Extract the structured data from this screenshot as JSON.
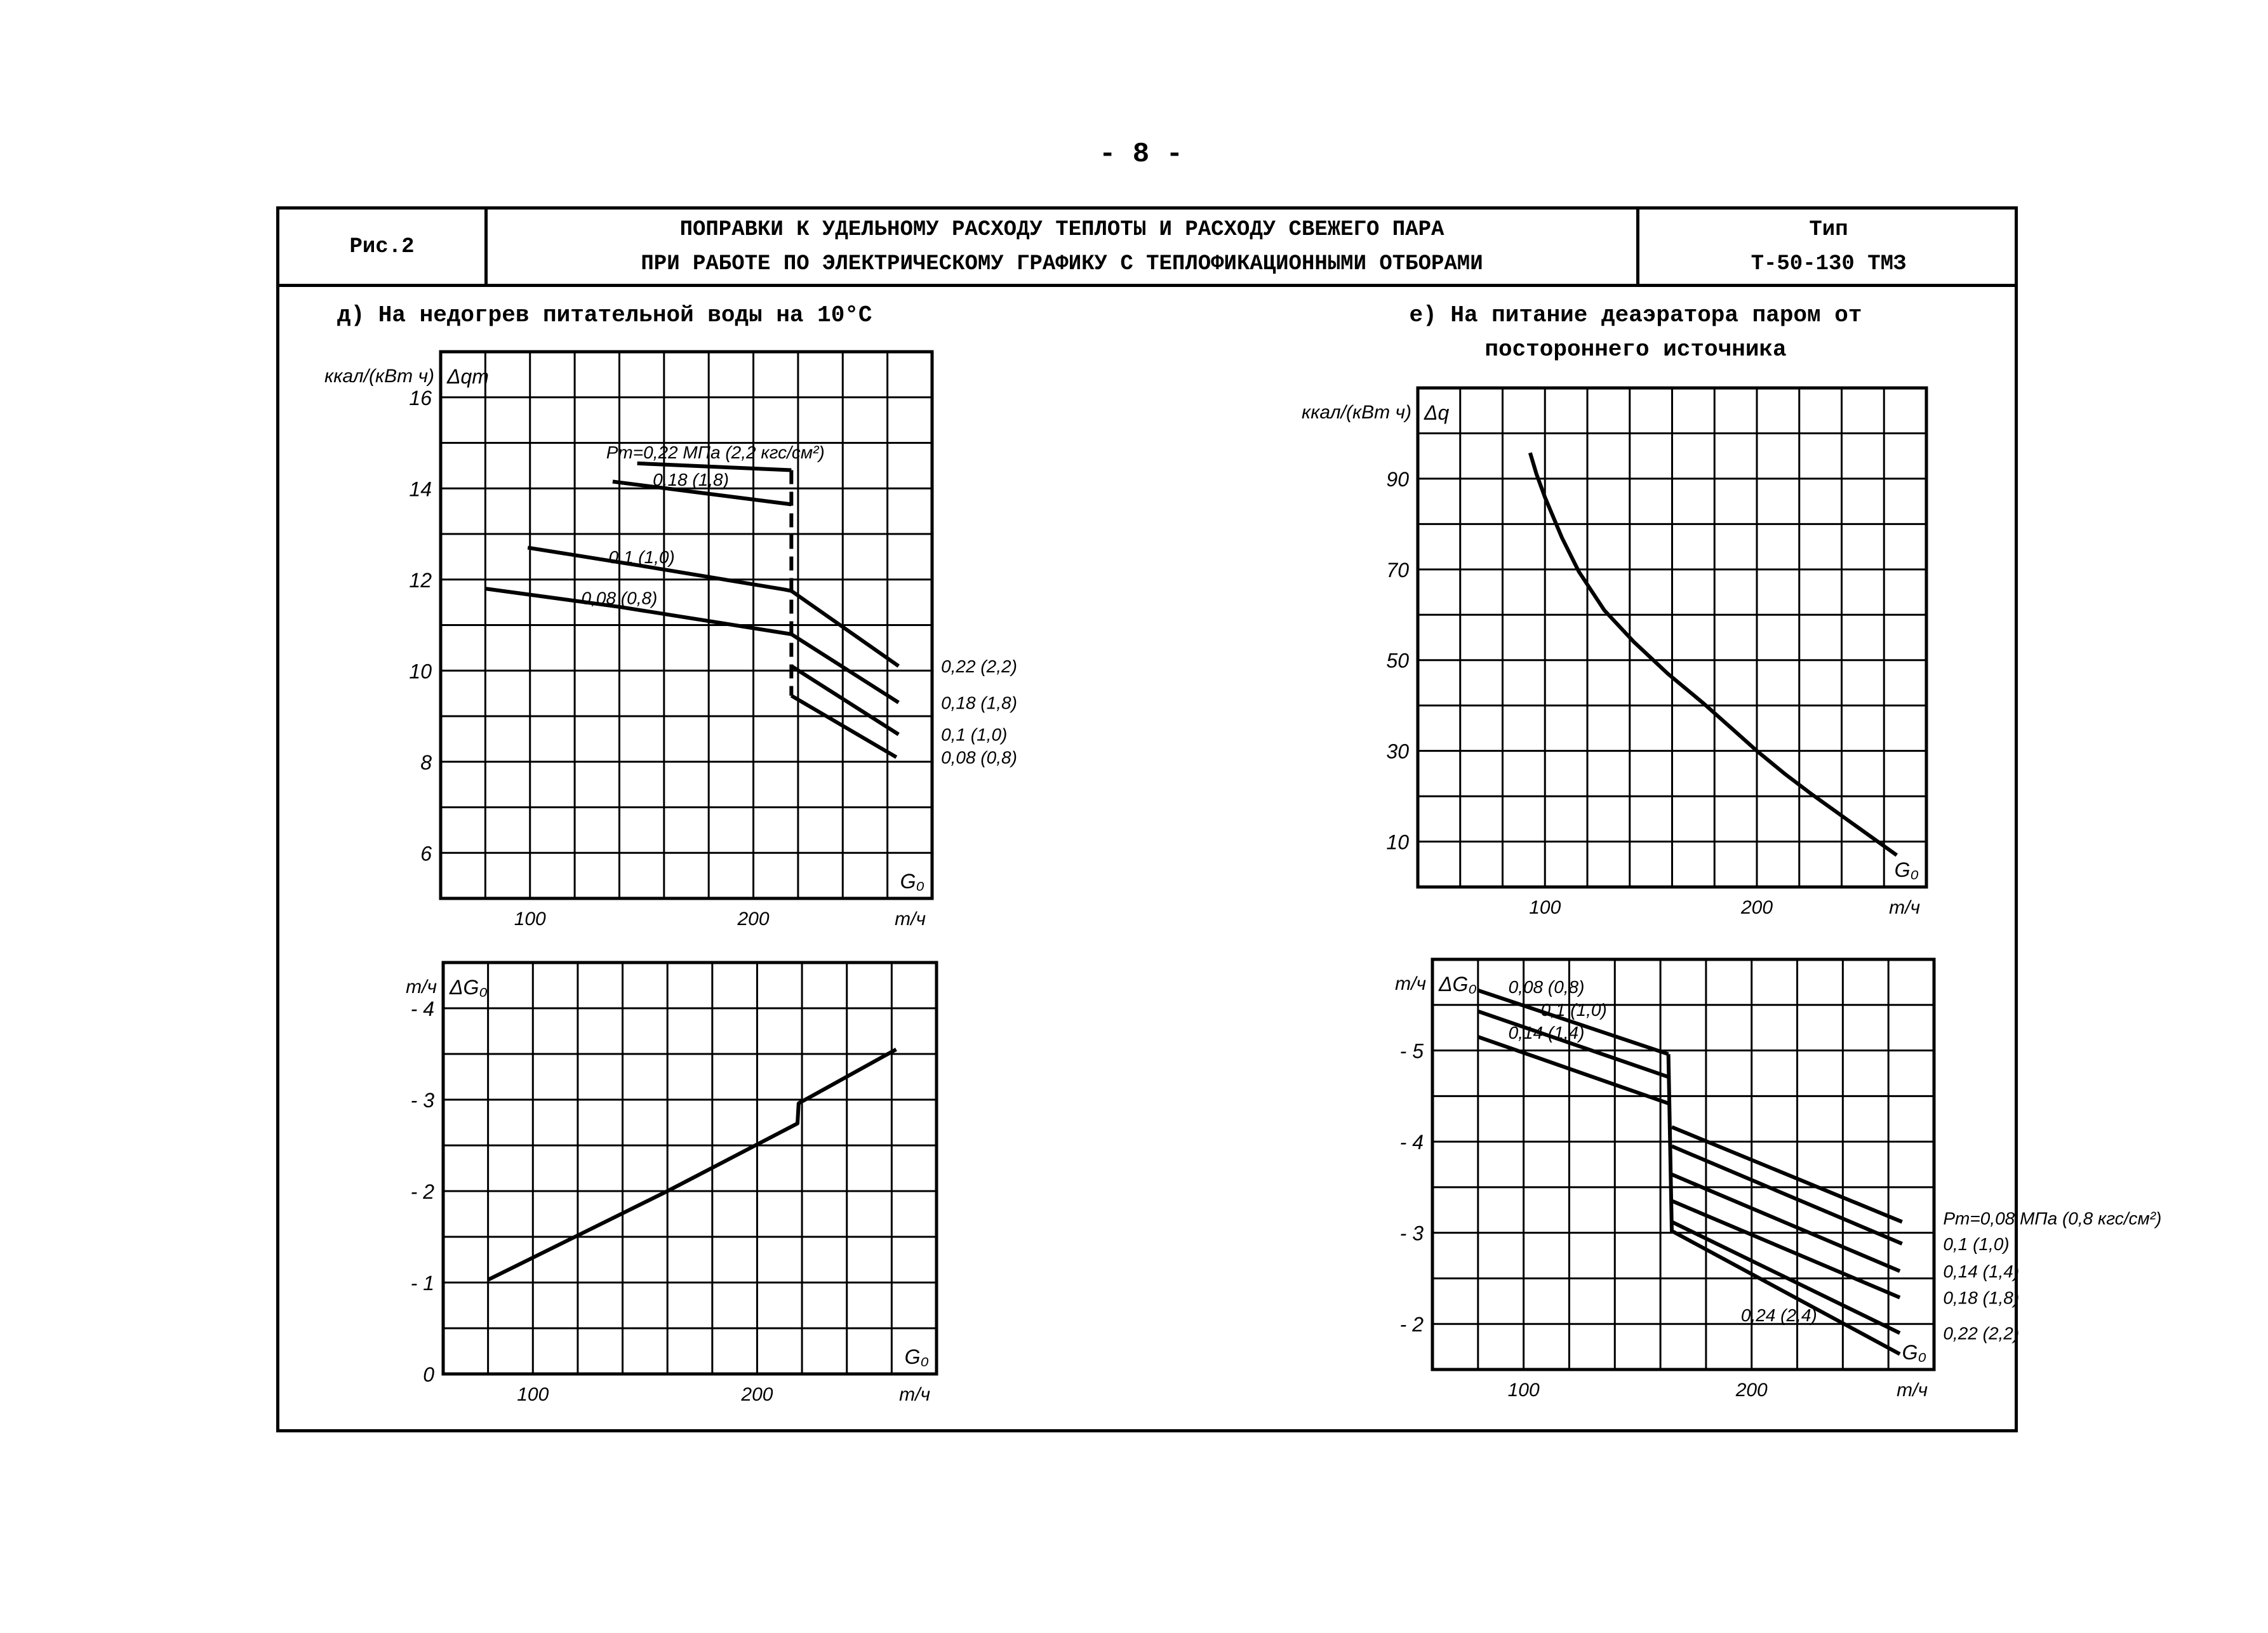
{
  "page_number": "- 8 -",
  "header": {
    "fig": "Рис.2",
    "title_line1": "ПОПРАВКИ К УДЕЛЬНОМУ РАСХОДУ ТЕПЛОТЫ И РАСХОДУ СВЕЖЕГО ПАРА",
    "title_line2": "ПРИ РАБОТЕ ПО ЭЛЕКТРИЧЕСКОМУ ГРАФИКУ С ТЕПЛОФИКАЦИОННЫМИ ОТБОРАМИ",
    "type_label": "Тип",
    "type_value": "Т-50-130 ТМЗ"
  },
  "chart_data": [
    {
      "type": "line",
      "title": [
        "д) На недогрев питательной воды на 10°С"
      ],
      "ylabel": "ккал/(кВт ч)",
      "ysymbol": "Δqт",
      "xsymbol": "G₀",
      "xunit": "т/ч",
      "xlim": [
        60,
        280
      ],
      "ylim": [
        5,
        17
      ],
      "grid": true,
      "xgrid_step": 20,
      "ygrid_step": 1,
      "xticks": [
        {
          "value": 100,
          "label": "100"
        },
        {
          "value": 200,
          "label": "200"
        }
      ],
      "yticks": [
        {
          "value": 6,
          "label": "6"
        },
        {
          "value": 8,
          "label": "8"
        },
        {
          "value": 10,
          "label": "10"
        },
        {
          "value": 12,
          "label": "12"
        },
        {
          "value": 14,
          "label": "14"
        },
        {
          "value": 16,
          "label": "16"
        }
      ],
      "series": [
        {
          "name": "Pт=0,22 МПа (2,2 кгс/см²)",
          "labels": [
            "Pт=0,22 МПа (2,2 кгс/см²)",
            "0,22 (2,2)"
          ],
          "segments": [
            [
              [
                148,
                14.55
              ],
              [
                217,
                14.4
              ]
            ],
            [
              [
                217,
                11.75
              ],
              [
                265,
                10.1
              ]
            ]
          ]
        },
        {
          "name": "0,18 (1,8)",
          "labels": [
            "0,18 (1,8)",
            "0,18 (1,8)"
          ],
          "segments": [
            [
              [
                137,
                14.15
              ],
              [
                217,
                13.65
              ]
            ],
            [
              [
                217,
                10.8
              ],
              [
                265,
                9.3
              ]
            ]
          ]
        },
        {
          "name": "0,1 (1,0)",
          "labels": [
            "0,1 (1,0)",
            "0,1 (1,0)"
          ],
          "segments": [
            [
              [
                99,
                12.7
              ],
              [
                150,
                12.3
              ],
              [
                214,
                11.78
              ],
              [
                217,
                11.75
              ]
            ],
            [
              [
                217,
                10.1
              ],
              [
                265,
                8.6
              ]
            ]
          ]
        },
        {
          "name": "0,08 (0,8)",
          "labels": [
            "0,08 (0,8)",
            "0,08 (0,8)"
          ],
          "segments": [
            [
              [
                80,
                11.8
              ],
              [
                140,
                11.4
              ],
              [
                217,
                10.8
              ]
            ],
            [
              [
                217,
                9.45
              ],
              [
                264,
                8.1
              ]
            ]
          ]
        }
      ],
      "connectors": [
        {
          "style": "dashed",
          "points": [
            [
              217,
              14.4
            ],
            [
              217,
              9.45
            ]
          ]
        }
      ]
    },
    {
      "type": "line",
      "title": [
        "е) На питание деаэратора паром от",
        "постороннего источника"
      ],
      "ylabel": "ккал/(кВт ч)",
      "ysymbol": "Δq",
      "xsymbol": "G₀",
      "xunit": "т/ч",
      "xlim": [
        40,
        280
      ],
      "ylim": [
        0,
        110
      ],
      "grid": true,
      "xgrid_step": 20,
      "ygrid_step": 10,
      "xticks": [
        {
          "value": 100,
          "label": "100"
        },
        {
          "value": 200,
          "label": "200"
        }
      ],
      "yticks": [
        {
          "value": 10,
          "label": "10"
        },
        {
          "value": 30,
          "label": "30"
        },
        {
          "value": 50,
          "label": "50"
        },
        {
          "value": 70,
          "label": "70"
        },
        {
          "value": 90,
          "label": "90"
        }
      ],
      "series": [
        {
          "labels": [],
          "segments": [
            [
              [
                93,
                95.7
              ],
              [
                96,
                91
              ],
              [
                100,
                85.9
              ],
              [
                108,
                77
              ],
              [
                116,
                69.5
              ],
              [
                128,
                61
              ],
              [
                142,
                54
              ],
              [
                158,
                47
              ],
              [
                175,
                40.4
              ],
              [
                188,
                35
              ],
              [
                200,
                30
              ],
              [
                213,
                25
              ],
              [
                226,
                20.4
              ],
              [
                246,
                13.7
              ],
              [
                266,
                7
              ]
            ]
          ]
        }
      ],
      "connectors": []
    },
    {
      "type": "line",
      "title": [],
      "ylabel": "т/ч",
      "ysymbol": "ΔG₀",
      "xsymbol": "G₀",
      "xunit": "т/ч",
      "xlim": [
        60,
        280
      ],
      "ylim": [
        0,
        -4.5
      ],
      "grid": true,
      "xgrid_step": 20,
      "ygrid_step": -0.5,
      "xticks": [
        {
          "value": 100,
          "label": "100"
        },
        {
          "value": 200,
          "label": "200"
        }
      ],
      "yticks": [
        {
          "value": 0,
          "label": "0"
        },
        {
          "value": -1,
          "label": "- 1"
        },
        {
          "value": -2,
          "label": "- 2"
        },
        {
          "value": -3,
          "label": "- 3"
        },
        {
          "value": -4,
          "label": "- 4"
        }
      ],
      "series": [
        {
          "labels": [],
          "segments": [
            [
              [
                80,
                -1.03
              ],
              [
                160,
                -2.0
              ],
              [
                218,
                -2.74
              ],
              [
                218.5,
                -2.96
              ],
              [
                262,
                -3.55
              ]
            ]
          ]
        }
      ],
      "connectors": []
    },
    {
      "type": "line",
      "title": [],
      "ylabel": "т/ч",
      "ysymbol": "ΔG₀",
      "xsymbol": "G₀",
      "xunit": "т/ч",
      "xlim": [
        60,
        280
      ],
      "ylim": [
        -1.5,
        -6
      ],
      "grid": true,
      "xgrid_step": 20,
      "ygrid_step": -0.5,
      "xticks": [
        {
          "value": 100,
          "label": "100"
        },
        {
          "value": 200,
          "label": "200"
        }
      ],
      "yticks": [
        {
          "value": -2,
          "label": "- 2"
        },
        {
          "value": -3,
          "label": "- 3"
        },
        {
          "value": -4,
          "label": "- 4"
        },
        {
          "value": -5,
          "label": "- 5"
        }
      ],
      "series": [
        {
          "name": "Pт=0,08 МПа (0,8 кгс/см²)",
          "labels": [
            "0,08 (0,8)",
            "Pт=0,08 МПа (0,8 кгс/см²)"
          ],
          "segments": [
            [
              [
                80,
                -5.66
              ],
              [
                163.5,
                -4.96
              ]
            ],
            [
              [
                165,
                -4.16
              ],
              [
                266,
                -3.12
              ]
            ]
          ]
        },
        {
          "name": "0,1 (1,0)",
          "labels": [
            "0,1 (1,0)",
            "0,1 (1,0)"
          ],
          "segments": [
            [
              [
                80,
                -5.43
              ],
              [
                163.5,
                -4.71
              ]
            ],
            [
              [
                165,
                -3.95
              ],
              [
                266,
                -2.88
              ]
            ]
          ]
        },
        {
          "name": "0,14 (1,4)",
          "labels": [
            "0,14 (1,4)",
            "0,14 (1,4)"
          ],
          "segments": [
            [
              [
                80,
                -5.15
              ],
              [
                163.5,
                -4.42
              ]
            ],
            [
              [
                165,
                -3.64
              ],
              [
                265,
                -2.58
              ]
            ]
          ]
        },
        {
          "name": "0,18 (1,8)",
          "labels": [
            "0,18 (1,8)"
          ],
          "segments": [
            [
              [
                165,
                -3.35
              ],
              [
                265,
                -2.29
              ]
            ]
          ]
        },
        {
          "name": "0,22 (2,2)",
          "labels": [
            "0,22 (2,2)"
          ],
          "segments": [
            [
              [
                165,
                -3.12
              ],
              [
                265,
                -1.9
              ]
            ]
          ]
        },
        {
          "name": "0,24 (2,4)",
          "labels": [
            "0,24 (2,4)"
          ],
          "segments": [
            [
              [
                165,
                -3.02
              ],
              [
                265,
                -1.67
              ]
            ]
          ]
        }
      ],
      "connectors": [
        {
          "style": "solid",
          "points": [
            [
              163.5,
              -4.96
            ],
            [
              165,
              -3.0
            ]
          ]
        }
      ]
    }
  ]
}
